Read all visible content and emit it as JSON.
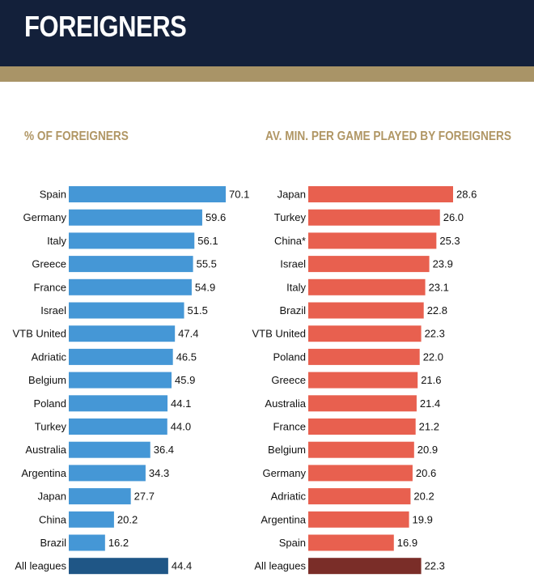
{
  "header": {
    "title": "FOREIGNERS"
  },
  "colors": {
    "header_bg": "#13203a",
    "gold_band": "#a99467",
    "left_bar": "#4597d6",
    "left_total": "#1f5686",
    "right_bar": "#e8604f",
    "right_total": "#7a2d28",
    "panel_title": "#b09664"
  },
  "chart_data": [
    {
      "type": "bar",
      "orientation": "horizontal",
      "title": "% OF FOREIGNERS",
      "categories": [
        "Spain",
        "Germany",
        "Italy",
        "Greece",
        "France",
        "Israel",
        "VTB United",
        "Adriatic",
        "Belgium",
        "Poland",
        "Turkey",
        "Australia",
        "Argentina",
        "Japan",
        "China",
        "Brazil",
        "All leagues"
      ],
      "values": [
        70.1,
        59.6,
        56.1,
        55.5,
        54.9,
        51.5,
        47.4,
        46.5,
        45.9,
        44.1,
        44.0,
        36.4,
        34.3,
        27.7,
        20.2,
        16.2,
        44.4
      ],
      "labels": [
        "70.1",
        "59.6",
        "56.1",
        "55.5",
        "54.9",
        "51.5",
        "47.4",
        "46.5",
        "45.9",
        "44.1",
        "44.0",
        "36.4",
        "34.3",
        "27.7",
        "20.2",
        "16.2",
        "44.4"
      ],
      "highlight_last": true,
      "xlim": [
        0,
        70.1
      ]
    },
    {
      "type": "bar",
      "orientation": "horizontal",
      "title": "AV. MIN. PER GAME PLAYED BY FOREIGNERS",
      "categories": [
        "Japan",
        "Turkey",
        "China*",
        "Israel",
        "Italy",
        "Brazil",
        "VTB United",
        "Poland",
        "Greece",
        "Australia",
        "France",
        "Belgium",
        "Germany",
        "Adriatic",
        "Argentina",
        "Spain",
        "All leagues"
      ],
      "values": [
        28.6,
        26.0,
        25.3,
        23.9,
        23.1,
        22.8,
        22.3,
        22.0,
        21.6,
        21.4,
        21.2,
        20.9,
        20.6,
        20.2,
        19.9,
        16.9,
        22.3
      ],
      "labels": [
        "28.6",
        "26.0",
        "25.3",
        "23.9",
        "23.1",
        "22.8",
        "22.3",
        "22.0",
        "21.6",
        "21.4",
        "21.2",
        "20.9",
        "20.6",
        "20.2",
        "19.9",
        "16.9",
        "22.3"
      ],
      "highlight_last": true,
      "xlim": [
        0,
        28.6
      ]
    }
  ]
}
